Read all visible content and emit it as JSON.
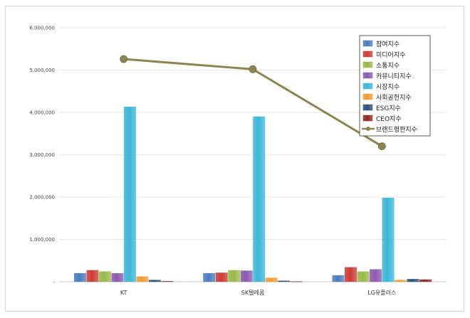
{
  "chart_data": {
    "type": "bar",
    "categories": [
      "KT",
      "SK텔레콤",
      "LG유플러스"
    ],
    "ylim": [
      0,
      6000000
    ],
    "yticks": [
      "-",
      "1,000,000",
      "2,000,000",
      "3,000,000",
      "4,000,000",
      "5,000,000",
      "6,000,000"
    ],
    "grid": true,
    "legend_position": "top-right",
    "series": [
      {
        "name": "참여지수",
        "kind": "bar",
        "color": "#4a7cc0",
        "values": [
          200000,
          200000,
          150000
        ]
      },
      {
        "name": "미디어지수",
        "kind": "bar",
        "color": "#cc3b35",
        "values": [
          270000,
          210000,
          340000
        ]
      },
      {
        "name": "소통지수",
        "kind": "bar",
        "color": "#98b948",
        "values": [
          240000,
          270000,
          240000
        ]
      },
      {
        "name": "커뮤니티지수",
        "kind": "bar",
        "color": "#8b5aae",
        "values": [
          200000,
          260000,
          290000
        ]
      },
      {
        "name": "시장지수",
        "kind": "bar",
        "color": "#3cb6d8",
        "values": [
          4130000,
          3900000,
          1980000
        ]
      },
      {
        "name": "사회공헌지수",
        "kind": "bar",
        "color": "#f29b32",
        "values": [
          120000,
          90000,
          40000
        ]
      },
      {
        "name": "ESG지수",
        "kind": "bar",
        "color": "#2b4f7e",
        "values": [
          40000,
          20000,
          60000
        ]
      },
      {
        "name": "CEO지수",
        "kind": "bar",
        "color": "#8e2a26",
        "values": [
          10000,
          5000,
          50000
        ]
      },
      {
        "name": "브랜드평판지수",
        "kind": "line",
        "color": "#8b8550",
        "values": [
          5260000,
          5020000,
          3200000
        ]
      }
    ]
  }
}
